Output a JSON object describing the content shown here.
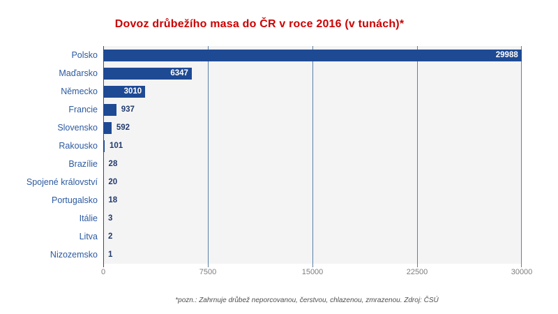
{
  "chart_data": {
    "type": "bar",
    "orientation": "horizontal",
    "title": "Dovoz drůbežího masa do ČR v roce 2016 (v tunách)*",
    "footnote": "*pozn.: Zahrnuje drůbež neporcovanou, čerstvou, chlazenou, zmrazenou. Zdroj: ČSÚ",
    "categories": [
      "Polsko",
      "Maďarsko",
      "Německo",
      "Francie",
      "Slovensko",
      "Rakousko",
      "Brazílie",
      "Spojené království",
      "Portugalsko",
      "Itálie",
      "Litva",
      "Nizozemsko"
    ],
    "values": [
      29988,
      6347,
      3010,
      937,
      592,
      101,
      28,
      20,
      18,
      3,
      2,
      1
    ],
    "xlabel": "",
    "ylabel": "",
    "xlim": [
      0,
      30000
    ],
    "x_ticks": [
      0,
      7500,
      15000,
      22500,
      30000
    ],
    "grid": true,
    "legend": false,
    "colors": {
      "title": "#cc0000",
      "bar": "#1e4a94",
      "category_label": "#2c5aa0",
      "value_inside": "#ffffff",
      "value_outside": "#21396b",
      "grid": "#5b7fa5",
      "axis_line": "#4a4a4a",
      "plot_bg": "#f4f4f5",
      "tick_label": "#7d7d7d",
      "footnote": "#4f4f4f",
      "background": "#ffffff"
    }
  }
}
